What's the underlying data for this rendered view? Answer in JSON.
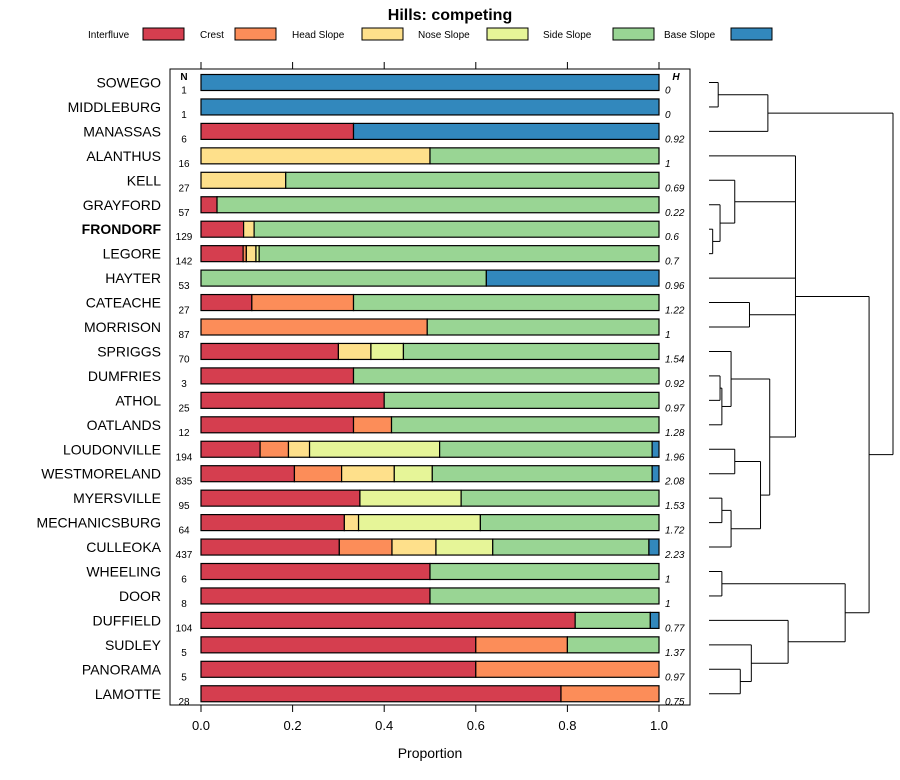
{
  "chart_data": {
    "type": "bar",
    "orientation": "horizontal",
    "stacked": true,
    "title": "Hills: competing",
    "xlabel": "Proportion",
    "xlim": [
      0,
      1
    ],
    "x_ticks": [
      "0.0",
      "0.2",
      "0.4",
      "0.6",
      "0.8",
      "1.0"
    ],
    "x_tick_values": [
      0,
      0.2,
      0.4,
      0.6,
      0.8,
      1.0
    ],
    "n_header": "N",
    "h_header": "H",
    "highlight": "FRONDORF",
    "legend": [
      {
        "name": "Interfluve",
        "color": "#d53e4f"
      },
      {
        "name": "Crest",
        "color": "#fc8d59"
      },
      {
        "name": "Head Slope",
        "color": "#fee08b"
      },
      {
        "name": "Nose Slope",
        "color": "#e6f598"
      },
      {
        "name": "Side Slope",
        "color": "#99d594"
      },
      {
        "name": "Base Slope",
        "color": "#3288bd"
      }
    ],
    "rows": [
      {
        "name": "SOWEGO",
        "n": "1",
        "h": "0",
        "values": [
          0,
          0,
          0,
          0,
          0,
          1.0
        ]
      },
      {
        "name": "MIDDLEBURG",
        "n": "1",
        "h": "0",
        "values": [
          0,
          0,
          0,
          0,
          0,
          1.0
        ]
      },
      {
        "name": "MANASSAS",
        "n": "6",
        "h": "0.92",
        "values": [
          0.333,
          0,
          0,
          0,
          0,
          0.667
        ]
      },
      {
        "name": "ALANTHUS",
        "n": "16",
        "h": "1",
        "values": [
          0,
          0,
          0.5,
          0,
          0.5,
          0
        ]
      },
      {
        "name": "KELL",
        "n": "27",
        "h": "0.69",
        "values": [
          0,
          0,
          0.185,
          0,
          0.815,
          0
        ]
      },
      {
        "name": "GRAYFORD",
        "n": "57",
        "h": "0.22",
        "values": [
          0.035,
          0,
          0,
          0,
          0.965,
          0
        ]
      },
      {
        "name": "FRONDORF",
        "n": "129",
        "h": "0.6",
        "values": [
          0.093,
          0,
          0.023,
          0,
          0.884,
          0
        ]
      },
      {
        "name": "LEGORE",
        "n": "142",
        "h": "0.7",
        "values": [
          0.092,
          0.007,
          0.021,
          0.007,
          0.873,
          0
        ]
      },
      {
        "name": "HAYTER",
        "n": "53",
        "h": "0.96",
        "values": [
          0,
          0,
          0,
          0,
          0.623,
          0.377
        ]
      },
      {
        "name": "CATEACHE",
        "n": "27",
        "h": "1.22",
        "values": [
          0.111,
          0.222,
          0,
          0,
          0.667,
          0
        ]
      },
      {
        "name": "MORRISON",
        "n": "87",
        "h": "1",
        "values": [
          0,
          0.494,
          0,
          0,
          0.506,
          0
        ]
      },
      {
        "name": "SPRIGGS",
        "n": "70",
        "h": "1.54",
        "values": [
          0.3,
          0,
          0.071,
          0.071,
          0.558,
          0
        ]
      },
      {
        "name": "DUMFRIES",
        "n": "3",
        "h": "0.92",
        "values": [
          0.333,
          0,
          0,
          0,
          0.667,
          0
        ]
      },
      {
        "name": "ATHOL",
        "n": "25",
        "h": "0.97",
        "values": [
          0.4,
          0,
          0,
          0,
          0.6,
          0
        ]
      },
      {
        "name": "OATLANDS",
        "n": "12",
        "h": "1.28",
        "values": [
          0.333,
          0.083,
          0,
          0,
          0.584,
          0
        ]
      },
      {
        "name": "LOUDONVILLE",
        "n": "194",
        "h": "1.96",
        "values": [
          0.129,
          0.062,
          0.046,
          0.284,
          0.464,
          0.015
        ]
      },
      {
        "name": "WESTMORELAND",
        "n": "835",
        "h": "2.08",
        "values": [
          0.204,
          0.103,
          0.115,
          0.083,
          0.48,
          0.015
        ]
      },
      {
        "name": "MYERSVILLE",
        "n": "95",
        "h": "1.53",
        "values": [
          0.347,
          0,
          0,
          0.221,
          0.432,
          0
        ]
      },
      {
        "name": "MECHANICSBURG",
        "n": "64",
        "h": "1.72",
        "values": [
          0.313,
          0,
          0.031,
          0.266,
          0.39,
          0
        ]
      },
      {
        "name": "CULLEOKA",
        "n": "437",
        "h": "2.23",
        "values": [
          0.302,
          0.115,
          0.096,
          0.124,
          0.341,
          0.022
        ]
      },
      {
        "name": "WHEELING",
        "n": "6",
        "h": "1",
        "values": [
          0.5,
          0,
          0,
          0,
          0.5,
          0
        ]
      },
      {
        "name": "DOOR",
        "n": "8",
        "h": "1",
        "values": [
          0.5,
          0,
          0,
          0,
          0.5,
          0
        ]
      },
      {
        "name": "DUFFIELD",
        "n": "104",
        "h": "0.77",
        "values": [
          0.817,
          0,
          0,
          0,
          0.164,
          0.019
        ]
      },
      {
        "name": "SUDLEY",
        "n": "5",
        "h": "1.37",
        "values": [
          0.6,
          0.2,
          0,
          0,
          0.2,
          0
        ]
      },
      {
        "name": "PANORAMA",
        "n": "5",
        "h": "0.97",
        "values": [
          0.6,
          0.4,
          0,
          0,
          0,
          0
        ]
      },
      {
        "name": "LAMOTTE",
        "n": "28",
        "h": "0.75",
        "values": [
          0.786,
          0.214,
          0,
          0,
          0,
          0
        ]
      }
    ],
    "dendrogram": {
      "merges": [
        {
          "children": [
            0,
            1
          ],
          "height": 0.05
        },
        {
          "children": [
            "m0",
            2
          ],
          "height": 0.32
        },
        {
          "children": [
            6,
            7
          ],
          "height": 0.02
        },
        {
          "children": [
            5,
            "m2"
          ],
          "height": 0.06
        },
        {
          "children": [
            4,
            "m3"
          ],
          "height": 0.14
        },
        {
          "children": [
            9,
            10
          ],
          "height": 0.22
        },
        {
          "children": [
            13,
            12
          ],
          "height": 0.06
        },
        {
          "children": [
            "m6",
            14
          ],
          "height": 0.07
        },
        {
          "children": [
            11,
            "m7"
          ],
          "height": 0.12
        },
        {
          "children": [
            15,
            16
          ],
          "height": 0.14
        },
        {
          "children": [
            17,
            18
          ],
          "height": 0.07
        },
        {
          "children": [
            "m10",
            19
          ],
          "height": 0.12
        },
        {
          "children": [
            "m9",
            "m11"
          ],
          "height": 0.28
        },
        {
          "children": [
            "m8",
            "m12"
          ],
          "height": 0.33
        },
        {
          "children": [
            3,
            "m4",
            8,
            "m5",
            "m13"
          ],
          "height": 0.47
        },
        {
          "children": [
            20,
            21
          ],
          "height": 0.07
        },
        {
          "children": [
            24,
            25
          ],
          "height": 0.17
        },
        {
          "children": [
            23,
            "m16"
          ],
          "height": 0.23
        },
        {
          "children": [
            22,
            "m17"
          ],
          "height": 0.43
        },
        {
          "children": [
            "m15",
            "m18"
          ],
          "height": 0.74
        },
        {
          "children": [
            "m14",
            "m19"
          ],
          "height": 0.87
        },
        {
          "children": [
            "m1",
            "m20"
          ],
          "height": 1.0
        }
      ]
    }
  }
}
